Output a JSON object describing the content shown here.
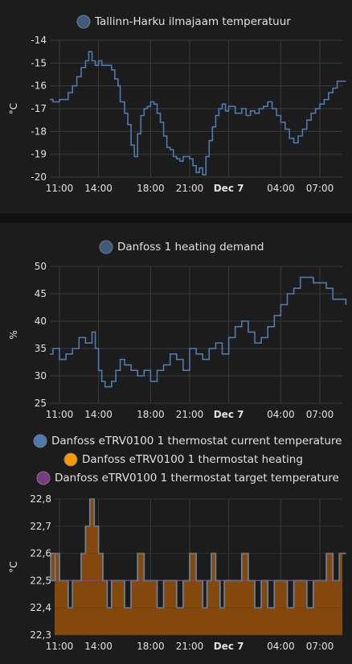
{
  "chart_data": [
    {
      "type": "line",
      "legend": [
        "Tallinn-Harku ilmajaam temperatuur"
      ],
      "ylabel": "°C",
      "xlabel": "",
      "ylim": [
        -20,
        -14
      ],
      "yticks": [
        -20,
        -19,
        -18,
        -17,
        -16,
        -15,
        -14
      ],
      "xticks": [
        "11:00",
        "14:00",
        "18:00",
        "21:00",
        "Dec 7",
        "04:00",
        "07:00"
      ],
      "grid": true,
      "legend_position": "top",
      "colors": {
        "series": "#4f7ab0",
        "dot": "#3d5a80"
      },
      "series": [
        {
          "step": true,
          "x": [
            "10:00",
            "10:30",
            "11:00",
            "11:40",
            "12:00",
            "12:20",
            "12:40",
            "13:00",
            "13:15",
            "13:30",
            "13:45",
            "14:00",
            "14:15",
            "14:30",
            "14:45",
            "15:00",
            "15:15",
            "15:30",
            "15:40",
            "16:00",
            "16:15",
            "16:30",
            "16:45",
            "17:00",
            "17:15",
            "17:30",
            "17:45",
            "18:00",
            "18:15",
            "18:30",
            "18:45",
            "19:00",
            "19:15",
            "19:30",
            "19:45",
            "20:00",
            "20:15",
            "20:30",
            "21:00",
            "21:15",
            "21:30",
            "21:45",
            "22:00",
            "22:15",
            "22:30",
            "22:45",
            "23:00",
            "23:15",
            "23:30",
            "23:45",
            "00:00",
            "00:30",
            "01:00",
            "01:20",
            "01:40",
            "02:00",
            "02:20",
            "02:40",
            "03:00",
            "03:20",
            "03:40",
            "04:00",
            "04:20",
            "04:40",
            "05:00",
            "05:20",
            "05:40",
            "06:00",
            "06:20",
            "06:40",
            "07:00",
            "07:20",
            "07:40",
            "08:00",
            "08:20",
            "08:40",
            "09:00"
          ],
          "y": [
            -16.6,
            -16.7,
            -16.6,
            -16.3,
            -16.0,
            -15.6,
            -15.2,
            -14.9,
            -14.5,
            -14.9,
            -15.1,
            -14.9,
            -15.1,
            -15.1,
            -15.1,
            -15.3,
            -15.7,
            -16.0,
            -16.7,
            -17.2,
            -17.7,
            -18.6,
            -19.1,
            -18.1,
            -17.3,
            -17.0,
            -16.9,
            -16.7,
            -16.8,
            -17.2,
            -17.6,
            -18.2,
            -18.7,
            -18.8,
            -19.1,
            -19.2,
            -19.3,
            -19.1,
            -19.2,
            -19.5,
            -19.8,
            -19.6,
            -19.9,
            -19.1,
            -18.4,
            -17.8,
            -17.3,
            -17.0,
            -16.8,
            -17.1,
            -16.9,
            -17.2,
            -17.0,
            -17.3,
            -17.1,
            -17.2,
            -17.0,
            -16.9,
            -16.7,
            -17.0,
            -17.3,
            -17.6,
            -17.9,
            -18.3,
            -18.5,
            -18.2,
            -17.9,
            -17.5,
            -17.2,
            -17.0,
            -16.8,
            -16.6,
            -16.3,
            -16.1,
            -15.8,
            -15.8,
            -15.8
          ]
        }
      ]
    },
    {
      "type": "line",
      "legend": [
        "Danfoss 1 heating demand"
      ],
      "ylabel": "%",
      "xlabel": "",
      "ylim": [
        25,
        50
      ],
      "yticks": [
        25,
        30,
        35,
        40,
        45,
        50
      ],
      "xticks": [
        "11:00",
        "14:00",
        "18:00",
        "21:00",
        "Dec 7",
        "04:00",
        "07:00"
      ],
      "grid": true,
      "legend_position": "top",
      "colors": {
        "series": "#4f7ab0",
        "dot": "#3d5a80"
      },
      "series": [
        {
          "step": true,
          "x": [
            "10:00",
            "10:30",
            "11:00",
            "11:30",
            "12:00",
            "12:30",
            "13:00",
            "13:30",
            "13:45",
            "14:00",
            "14:15",
            "14:30",
            "15:00",
            "15:20",
            "15:40",
            "16:00",
            "16:30",
            "17:00",
            "17:30",
            "18:00",
            "18:30",
            "19:00",
            "19:30",
            "20:00",
            "20:30",
            "21:00",
            "21:30",
            "22:00",
            "22:30",
            "23:00",
            "23:30",
            "00:00",
            "00:30",
            "01:00",
            "01:30",
            "02:00",
            "02:30",
            "03:00",
            "03:30",
            "04:00",
            "04:30",
            "05:00",
            "05:30",
            "06:00",
            "06:30",
            "07:00",
            "07:30",
            "08:00",
            "08:30",
            "09:00"
          ],
          "y": [
            34,
            35,
            33,
            34,
            35,
            37,
            36,
            38,
            35,
            31,
            29,
            28,
            29,
            31,
            33,
            32,
            31,
            30,
            31,
            29,
            31,
            32,
            34,
            33,
            31,
            35,
            34,
            33,
            35,
            36,
            34,
            37,
            39,
            40,
            38,
            36,
            37,
            39,
            41,
            43,
            45,
            46,
            48,
            48,
            47,
            47,
            46,
            44,
            44,
            43
          ]
        }
      ]
    },
    {
      "type": "area",
      "legend": [
        "Danfoss eTRV0100 1 thermostat current temperature",
        "Danfoss eTRV0100 1 thermostat heating",
        "Danfoss eTRV0100 1 thermostat target temperature"
      ],
      "ylabel": "°C",
      "xlabel": "",
      "ylim": [
        22.3,
        22.8
      ],
      "yticks": [
        "22,3",
        "22,4",
        "22,5",
        "22,6",
        "22,7",
        "22,8"
      ],
      "xticks": [
        "11:00",
        "14:00",
        "18:00",
        "21:00",
        "Dec 7",
        "04:00",
        "07:00"
      ],
      "grid": true,
      "legend_position": "top",
      "colors": {
        "current": "#4f7ab0",
        "heating": "#8a4b0c",
        "heating_dot": "#ff9800",
        "target": "#9c4aa0",
        "target_dot": "#7b3a82"
      },
      "series": [
        {
          "name": "Danfoss eTRV0100 1 thermostat current temperature",
          "step": true,
          "x": [
            "10:00",
            "10:20",
            "10:40",
            "11:00",
            "11:20",
            "11:40",
            "12:00",
            "12:20",
            "12:40",
            "13:00",
            "13:20",
            "13:40",
            "14:00",
            "14:20",
            "14:40",
            "15:00",
            "15:30",
            "16:00",
            "16:30",
            "17:00",
            "17:30",
            "18:00",
            "18:30",
            "19:00",
            "19:30",
            "20:00",
            "20:30",
            "21:00",
            "21:30",
            "22:00",
            "22:20",
            "22:40",
            "23:00",
            "23:20",
            "23:40",
            "00:00",
            "00:30",
            "01:00",
            "01:30",
            "02:00",
            "02:30",
            "03:00",
            "03:30",
            "04:00",
            "04:30",
            "05:00",
            "05:30",
            "06:00",
            "06:30",
            "07:00",
            "07:30",
            "08:00",
            "08:30",
            "09:00"
          ],
          "y": [
            22.6,
            22.5,
            22.6,
            22.5,
            22.5,
            22.4,
            22.5,
            22.5,
            22.6,
            22.7,
            22.8,
            22.7,
            22.6,
            22.5,
            22.4,
            22.5,
            22.5,
            22.4,
            22.5,
            22.6,
            22.5,
            22.5,
            22.4,
            22.5,
            22.5,
            22.4,
            22.5,
            22.6,
            22.5,
            22.4,
            22.5,
            22.6,
            22.5,
            22.4,
            22.5,
            22.5,
            22.5,
            22.6,
            22.5,
            22.4,
            22.5,
            22.4,
            22.5,
            22.5,
            22.4,
            22.5,
            22.5,
            22.4,
            22.5,
            22.5,
            22.6,
            22.5,
            22.6,
            22.6
          ]
        },
        {
          "name": "Danfoss eTRV0100 1 thermostat heating",
          "fill": true
        },
        {
          "name": "Danfoss eTRV0100 1 thermostat target temperature",
          "constant": 22.5
        }
      ]
    }
  ]
}
